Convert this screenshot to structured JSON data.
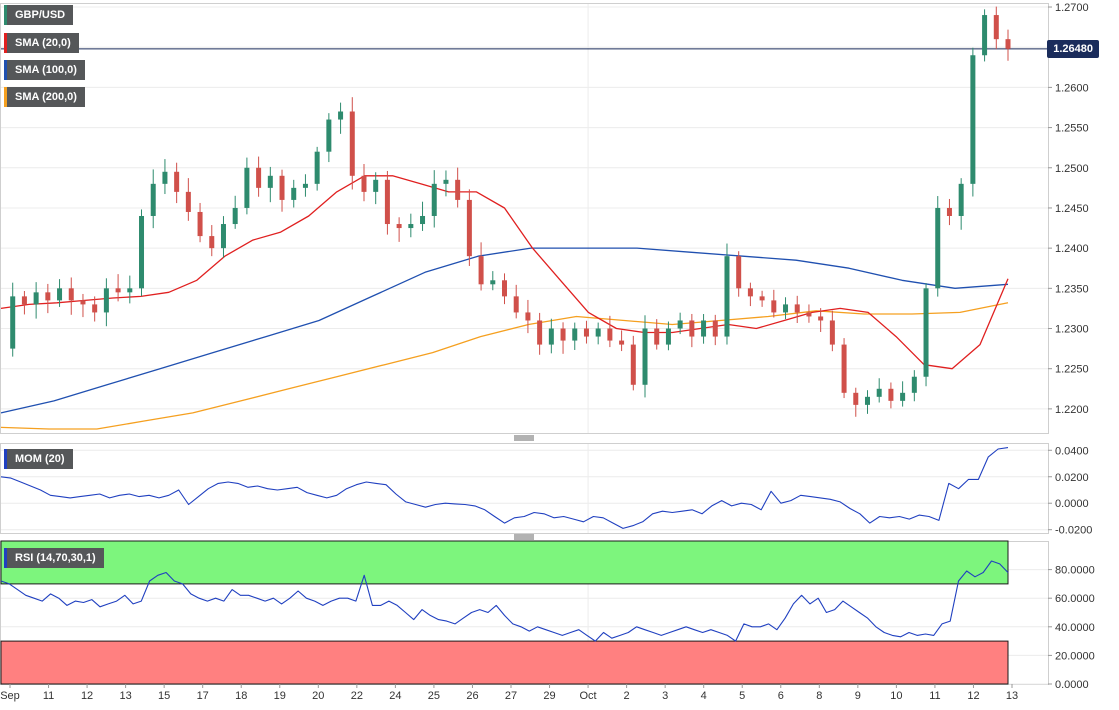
{
  "legend": {
    "pair": "GBP/USD",
    "sma20": "SMA (20,0)",
    "sma100": "SMA (100,0)",
    "sma200": "SMA (200,0)",
    "mom": "MOM (20)",
    "rsi": "RSI (14,70,30,1)"
  },
  "current_price": "1.26480",
  "colors": {
    "bull": "#2e8b6e",
    "bear": "#d0504a",
    "sma20": "#e02020",
    "sma100": "#2050b0",
    "sma200": "#f5a020",
    "indicator": "#2040c0",
    "rsi_overbought_zone": "#7df57d",
    "rsi_oversold_zone": "#ff8080"
  },
  "chart_data": [
    {
      "type": "candlestick",
      "panel": "price",
      "ylim": [
        1.217,
        1.2705
      ],
      "y_ticks": [
        "1.2700",
        "1.2650",
        "1.2600",
        "1.2550",
        "1.2500",
        "1.2450",
        "1.2400",
        "1.2350",
        "1.2300",
        "1.2250",
        "1.2200"
      ],
      "x_ticks": [
        "Sep",
        "11",
        "12",
        "13",
        "15",
        "17",
        "18",
        "19",
        "20",
        "22",
        "24",
        "25",
        "26",
        "27",
        "29",
        "Oct",
        "2",
        "3",
        "4",
        "5",
        "6",
        "8",
        "9",
        "10",
        "11",
        "12",
        "13"
      ],
      "close_path": [
        1.2275,
        1.234,
        1.233,
        1.2345,
        1.2335,
        1.235,
        1.2335,
        1.233,
        1.232,
        1.235,
        1.2345,
        1.235,
        1.244,
        1.248,
        1.2495,
        1.247,
        1.2445,
        1.2415,
        1.24,
        1.243,
        1.245,
        1.25,
        1.2475,
        1.249,
        1.246,
        1.2475,
        1.248,
        1.252,
        1.256,
        1.257,
        1.249,
        1.247,
        1.2485,
        1.243,
        1.2425,
        1.243,
        1.244,
        1.248,
        1.2485,
        1.246,
        1.239,
        1.2355,
        1.236,
        1.234,
        1.232,
        1.231,
        1.228,
        1.23,
        1.2285,
        1.23,
        1.229,
        1.23,
        1.2285,
        1.228,
        1.223,
        1.23,
        1.228,
        1.23,
        1.231,
        1.229,
        1.231,
        1.229,
        1.239,
        1.235,
        1.234,
        1.2335,
        1.232,
        1.233,
        1.232,
        1.2315,
        1.231,
        1.228,
        1.222,
        1.2205,
        1.2215,
        1.2225,
        1.221,
        1.222,
        1.224,
        1.235,
        1.245,
        1.244,
        1.248,
        1.264,
        1.269,
        1.266,
        1.2648
      ],
      "sma20": [
        1.2325,
        1.233,
        1.2332,
        1.2335,
        1.2338,
        1.234,
        1.2345,
        1.236,
        1.239,
        1.241,
        1.242,
        1.244,
        1.247,
        1.249,
        1.249,
        1.248,
        1.247,
        1.247,
        1.245,
        1.24,
        1.236,
        1.232,
        1.23,
        1.2295,
        1.2295,
        1.23,
        1.2305,
        1.23,
        1.231,
        1.232,
        1.2325,
        1.232,
        1.229,
        1.2255,
        1.225,
        1.228,
        1.2362
      ],
      "sma100": [
        1.2195,
        1.221,
        1.223,
        1.225,
        1.227,
        1.229,
        1.231,
        1.234,
        1.237,
        1.239,
        1.24,
        1.24,
        1.24,
        1.2395,
        1.239,
        1.2385,
        1.2375,
        1.236,
        1.235,
        1.2355
      ],
      "sma200": [
        1.2177,
        1.2175,
        1.2175,
        1.2185,
        1.2195,
        1.221,
        1.2225,
        1.224,
        1.2255,
        1.227,
        1.229,
        1.2305,
        1.2315,
        1.231,
        1.2305,
        1.231,
        1.2315,
        1.2322,
        1.2318,
        1.2318,
        1.232,
        1.2332
      ]
    },
    {
      "type": "line",
      "panel": "momentum",
      "ylim": [
        -0.0225,
        0.0455
      ],
      "y_ticks": [
        "0.0400",
        "0.0200",
        "0.0000",
        "-0.0200"
      ],
      "values": [
        0.02,
        0.019,
        0.016,
        0.013,
        0.01,
        0.006,
        0.005,
        0.004,
        0.005,
        0.006,
        0.007,
        0.004,
        0.006,
        0.007,
        0.005,
        0.006,
        0.004,
        0.006,
        0.01,
        -0.001,
        0.005,
        0.011,
        0.015,
        0.016,
        0.015,
        0.012,
        0.013,
        0.011,
        0.01,
        0.011,
        0.012,
        0.008,
        0.006,
        0.004,
        0.006,
        0.011,
        0.014,
        0.016,
        0.015,
        0.014,
        0.007,
        0.001,
        -0.001,
        -0.003,
        -0.001,
        0.0,
        -0.0005,
        -0.001,
        -0.002,
        -0.005,
        -0.01,
        -0.015,
        -0.011,
        -0.01,
        -0.007,
        -0.008,
        -0.011,
        -0.01,
        -0.012,
        -0.014,
        -0.01,
        -0.011,
        -0.015,
        -0.019,
        -0.017,
        -0.014,
        -0.008,
        -0.006,
        -0.007,
        -0.006,
        -0.005,
        -0.008,
        -0.002,
        0.002,
        -0.002,
        0.0,
        -0.001,
        -0.005,
        0.009,
        0.0,
        0.002,
        0.006,
        0.005,
        0.004,
        0.003,
        0.001,
        -0.004,
        -0.008,
        -0.015,
        -0.01,
        -0.011,
        -0.01,
        -0.012,
        -0.009,
        -0.01,
        -0.013,
        0.015,
        0.011,
        0.018,
        0.018,
        0.035,
        0.041,
        0.042
      ]
    },
    {
      "type": "line",
      "panel": "rsi",
      "ylim": [
        0,
        100
      ],
      "y_ticks": [
        "80.0000",
        "60.0000",
        "40.0000",
        "20.0000",
        "0.0000"
      ],
      "values": [
        72,
        70,
        66,
        62,
        60,
        58,
        63,
        60,
        55,
        58,
        57,
        59,
        54,
        56,
        58,
        62,
        56,
        58,
        72,
        76,
        78,
        72,
        70,
        63,
        60,
        58,
        60,
        58,
        66,
        62,
        62,
        60,
        58,
        60,
        56,
        60,
        65,
        60,
        58,
        55,
        58,
        60,
        60,
        58,
        76,
        55,
        55,
        58,
        55,
        50,
        45,
        52,
        48,
        45,
        44,
        42,
        46,
        50,
        52,
        50,
        55,
        48,
        42,
        40,
        37,
        40,
        38,
        36,
        34,
        36,
        38,
        34,
        30,
        36,
        32,
        34,
        36,
        40,
        38,
        36,
        34,
        36,
        38,
        40,
        38,
        36,
        38,
        36,
        34,
        30,
        42,
        40,
        40,
        42,
        38,
        46,
        56,
        62,
        56,
        60,
        50,
        52,
        58,
        54,
        50,
        46,
        40,
        36,
        34,
        33,
        36,
        34,
        35,
        34,
        42,
        44,
        72,
        79,
        75,
        78,
        86,
        84,
        78
      ]
    }
  ]
}
